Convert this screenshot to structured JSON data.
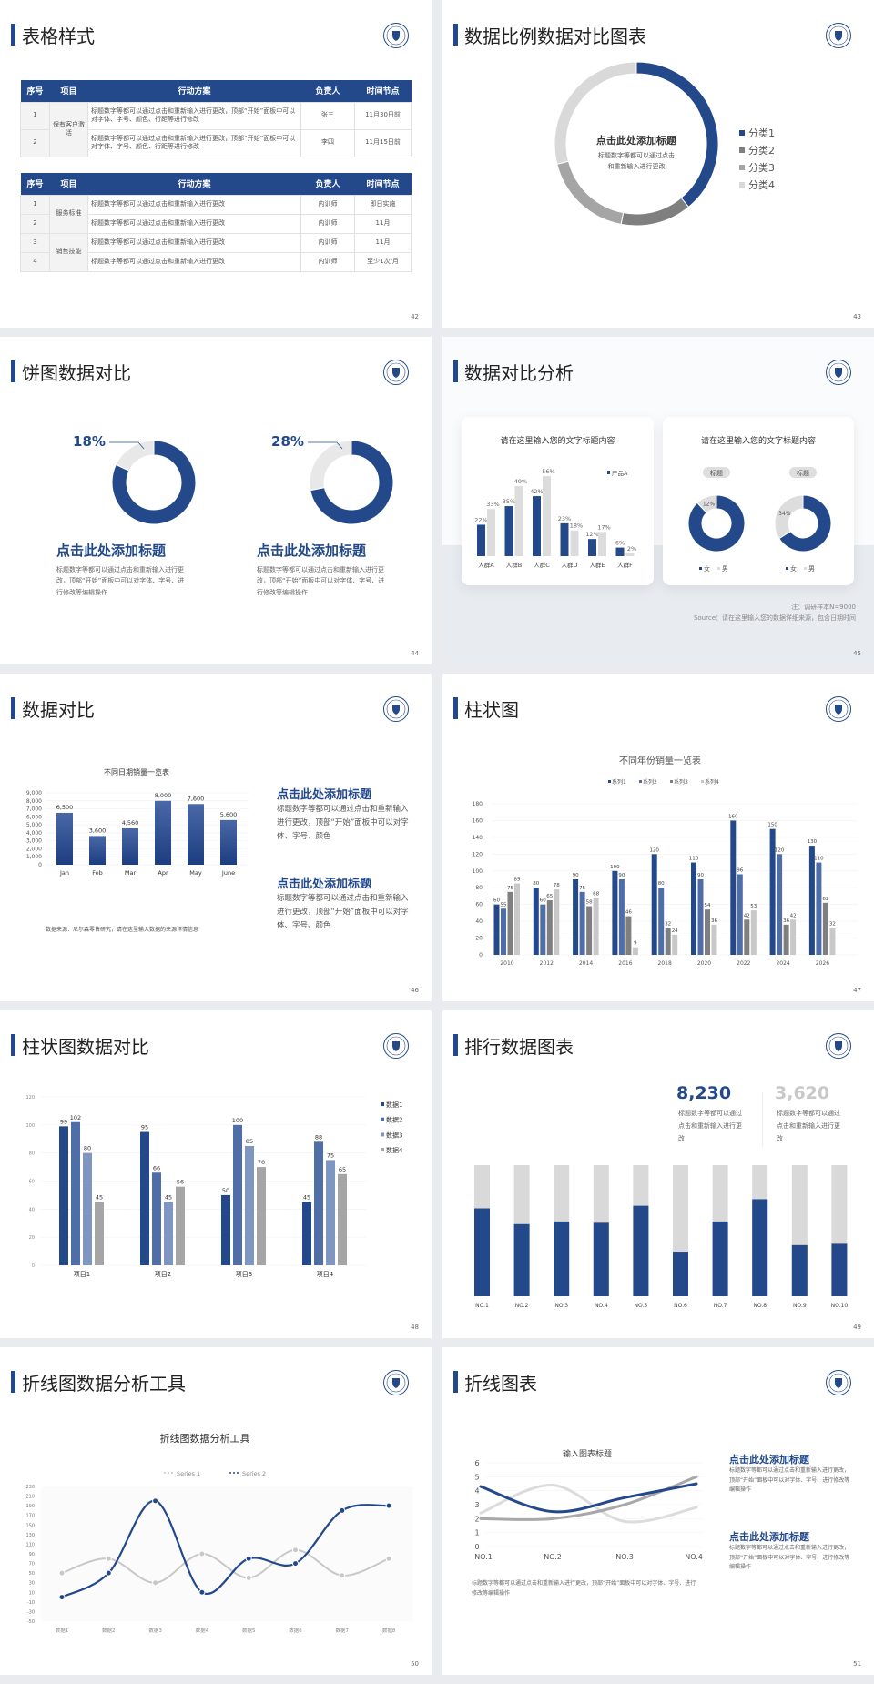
{
  "colors": {
    "blue": "#23498b",
    "blue2": "#4f6ea8",
    "blue3": "#7f96c2",
    "gray1": "#7f7f7f",
    "gray2": "#a5a5a5",
    "gray3": "#d9d9d9",
    "gray4": "#e8e8e8"
  },
  "logo_icon": "university-seal-icon",
  "slides": {
    "s42": {
      "title": "表格样式",
      "page": "42",
      "headers": [
        "序号",
        "项目",
        "行动方案",
        "负责人",
        "时间节点"
      ],
      "table1": {
        "project": "保有客户激活",
        "rows": [
          {
            "no": "1",
            "plan": "标题数字等都可以通过点击和重新输入进行更改，顶部“开始”面板中可以对字体、字号、颜色、行距等进行修改",
            "owner": "张三",
            "time": "11月30日前"
          },
          {
            "no": "2",
            "plan": "标题数字等都可以通过点击和重新输入进行更改，顶部“开始”面板中可以对字体、字号、颜色、行距等进行修改",
            "owner": "李四",
            "time": "11月15日前"
          }
        ]
      },
      "table2": {
        "projects": [
          "服务标准",
          "销售技能"
        ],
        "rows": [
          {
            "no": "1",
            "plan": "标题数字等都可以通过点击和重新输入进行更改",
            "owner": "内训师",
            "time": "即日实施"
          },
          {
            "no": "2",
            "plan": "标题数字等都可以通过点击和重新输入进行更改",
            "owner": "内训师",
            "time": "11月"
          },
          {
            "no": "3",
            "plan": "标题数字等都可以通过点击和重新输入进行更改",
            "owner": "内训师",
            "time": "11月"
          },
          {
            "no": "4",
            "plan": "标题数字等都可以通过点击和重新输入进行更改",
            "owner": "内训师",
            "time": "至少1次/月"
          }
        ]
      }
    },
    "s43": {
      "title": "数据比例数据对比图表",
      "page": "43",
      "center_title": "点击此处添加标题",
      "center_text": "标题数字等都可以通过点击和重新输入进行更改"
    },
    "s44": {
      "title": "饼图数据对比",
      "page": "44",
      "items": [
        {
          "pct": "18%",
          "heading": "点击此处添加标题",
          "text": "标题数字等都可以通过点击和重新输入进行更改，顶部“开始”面板中可以对字体、字号、进行修改等编辑操作"
        },
        {
          "pct": "28%",
          "heading": "点击此处添加标题",
          "text": "标题数字等都可以通过点击和重新输入进行更改，顶部“开始”面板中可以对字体、字号、进行修改等编辑操作"
        }
      ]
    },
    "s45": {
      "title": "数据对比分析",
      "page": "45",
      "card1_title": "请在这里输入您的文字标题内容",
      "card2_title": "请在这里输入您的文字标题内容",
      "note": "注：调研样本N=9000",
      "source": "Source：请在这里输入您的数据详细来源，包含日期时间"
    },
    "s46": {
      "title": "数据对比",
      "page": "46",
      "source": "数据来源：尼尔森零售研究，请在这里输入数据的来源详情信息",
      "blocks": [
        {
          "heading": "点击此处添加标题",
          "text": "标题数字等都可以通过点击和重新输入进行更改，顶部“开始”面板中可以对字体、字号、颜色"
        },
        {
          "heading": "点击此处添加标题",
          "text": "标题数字等都可以通过点击和重新输入进行更改，顶部“开始”面板中可以对字体、字号、颜色"
        }
      ]
    },
    "s47": {
      "title": "柱状图",
      "page": "47"
    },
    "s48": {
      "title": "柱状图数据对比",
      "page": "48"
    },
    "s49": {
      "title": "排行数据图表",
      "page": "49",
      "stats": [
        {
          "value": "8,230",
          "text": "标题数字等都可以通过点击和重新输入进行更改"
        },
        {
          "value": "3,620",
          "text": "标题数字等都可以通过点击和重新输入进行更改"
        }
      ]
    },
    "s50": {
      "title": "折线图数据分析工具",
      "page": "50"
    },
    "s51": {
      "title": "折线图表",
      "page": "51",
      "blocks": [
        {
          "heading": "点击此处添加标题",
          "text": "标题数字等都可以通过点击和重新输入进行更改，顶部“开始”面板中可以对字体、字号、进行修改等编辑操作"
        },
        {
          "heading": "点击此处添加标题",
          "text": "标题数字等都可以通过点击和重新输入进行更改，顶部“开始”面板中可以对字体、字号、进行修改等编辑操作"
        }
      ],
      "bottom_text": "标题数字等都可以通过点击和重新输入进行更改，顶部“开始”面板中可以对字体、字号、进行修改等编辑操作"
    }
  },
  "chart_data": [
    {
      "id": "s43",
      "type": "pie",
      "donut": true,
      "categories": [
        "分类1",
        "分类2",
        "分类3",
        "分类4"
      ],
      "values": [
        39,
        14,
        18,
        29
      ],
      "legend": "right"
    },
    {
      "id": "s44a",
      "type": "pie",
      "donut": true,
      "values": [
        82,
        18
      ],
      "label": "18%"
    },
    {
      "id": "s44b",
      "type": "pie",
      "donut": true,
      "values": [
        72,
        28
      ],
      "label": "28%"
    },
    {
      "id": "s45a",
      "type": "bar",
      "title": "请在这里输入您的文字标题内容",
      "categories": [
        "人群A",
        "人群B",
        "人群C",
        "人群D",
        "人群E",
        "人群F"
      ],
      "series": [
        {
          "name": "产品A",
          "values": [
            22,
            35,
            42,
            23,
            12,
            6
          ]
        },
        {
          "values": [
            33,
            49,
            56,
            18,
            17,
            2
          ]
        }
      ],
      "unit": "%",
      "legend": "top-right"
    },
    {
      "id": "s45b",
      "type": "pie",
      "donut": true,
      "label": "标题",
      "categories": [
        "女",
        "男"
      ],
      "values": [
        88,
        12
      ],
      "shown_label": "12%"
    },
    {
      "id": "s45c",
      "type": "pie",
      "donut": true,
      "label": "标题",
      "categories": [
        "女",
        "男"
      ],
      "values": [
        66,
        34
      ],
      "shown_label": "34%"
    },
    {
      "id": "s46",
      "type": "bar",
      "title": "不同日期销量一览表",
      "categories": [
        "Jan",
        "Feb",
        "Mar",
        "Apr",
        "May",
        "June"
      ],
      "values": [
        6500,
        3600,
        4560,
        8000,
        7600,
        5600
      ],
      "value_labels": [
        "6,500",
        "3,600",
        "4,560",
        "8,000",
        "7,600",
        "5,600"
      ],
      "ylim": [
        0,
        9000
      ],
      "yticks": [
        "0",
        "1,000",
        "2,000",
        "3,000",
        "4,000",
        "5,000",
        "6,000",
        "7,000",
        "8,000",
        "9,000"
      ],
      "grid": true
    },
    {
      "id": "s47",
      "type": "bar",
      "title": "不同年份销量一览表",
      "categories": [
        "2010",
        "2012",
        "2014",
        "2016",
        "2018",
        "2020",
        "2022",
        "2024",
        "2026"
      ],
      "series": [
        {
          "name": "系列1",
          "values": [
            60,
            80,
            90,
            100,
            120,
            110,
            160,
            150,
            130
          ]
        },
        {
          "name": "系列2",
          "values": [
            55,
            60,
            75,
            90,
            80,
            90,
            96,
            120,
            110
          ]
        },
        {
          "name": "系列3",
          "values": [
            75,
            65,
            58,
            46,
            32,
            54,
            42,
            36,
            62
          ]
        },
        {
          "name": "系列4",
          "values": [
            85,
            78,
            68,
            9,
            24,
            36,
            53,
            42,
            32
          ]
        }
      ],
      "ylim": [
        0,
        180
      ],
      "yticks": [
        "0",
        "20",
        "40",
        "60",
        "80",
        "100",
        "120",
        "140",
        "160",
        "180"
      ],
      "legend": "top",
      "grid": true
    },
    {
      "id": "s48",
      "type": "bar",
      "categories": [
        "项目1",
        "项目2",
        "项目3",
        "项目4"
      ],
      "series": [
        {
          "name": "数据1",
          "values": [
            99,
            95,
            50,
            45
          ]
        },
        {
          "name": "数据2",
          "values": [
            102,
            66,
            100,
            88
          ]
        },
        {
          "name": "数据3",
          "values": [
            80,
            45,
            85,
            75
          ]
        },
        {
          "name": "数据4",
          "values": [
            45,
            56,
            70,
            65
          ]
        }
      ],
      "ylim": [
        0,
        120
      ],
      "yticks": [
        "0",
        "20",
        "40",
        "60",
        "80",
        "100",
        "120"
      ],
      "legend": "right",
      "grid": true
    },
    {
      "id": "s49",
      "type": "bar",
      "stacked_percent": true,
      "categories": [
        "NO.1",
        "NO.2",
        "NO.3",
        "NO.4",
        "NO.5",
        "NO.6",
        "NO.7",
        "NO.8",
        "NO.9",
        "NO.10"
      ],
      "values": [
        0.67,
        0.55,
        0.57,
        0.56,
        0.69,
        0.34,
        0.57,
        0.74,
        0.39,
        0.4
      ]
    },
    {
      "id": "s50",
      "type": "line",
      "title": "折线图数据分析工具",
      "categories": [
        "数据1",
        "数据2",
        "数据3",
        "数据4",
        "数据5",
        "数据6",
        "数据7",
        "数据8"
      ],
      "series": [
        {
          "name": "Series 1",
          "values": [
            50,
            80,
            30,
            90,
            40,
            98,
            45,
            80
          ]
        },
        {
          "name": "Series 2",
          "values": [
            0,
            50,
            200,
            10,
            80,
            70,
            180,
            190
          ]
        }
      ],
      "ylim": [
        -50,
        230
      ],
      "yticks": [
        "-50",
        "-30",
        "-10",
        "10",
        "30",
        "50",
        "70",
        "90",
        "110",
        "130",
        "150",
        "170",
        "190",
        "210",
        "230"
      ],
      "legend": "top"
    },
    {
      "id": "s51",
      "type": "line",
      "title": "输入图表标题",
      "categories": [
        "NO.1",
        "NO.2",
        "NO.3",
        "NO.4"
      ],
      "series": [
        {
          "values": [
            4.3,
            2.5,
            3.5,
            4.5
          ]
        },
        {
          "values": [
            2.4,
            4.4,
            1.8,
            2.8
          ]
        },
        {
          "values": [
            2.0,
            2.0,
            3.0,
            5.0
          ]
        }
      ],
      "ylim": [
        0,
        6
      ],
      "yticks": [
        "0",
        "1",
        "2",
        "3",
        "4",
        "5",
        "6"
      ],
      "grid": true
    }
  ]
}
